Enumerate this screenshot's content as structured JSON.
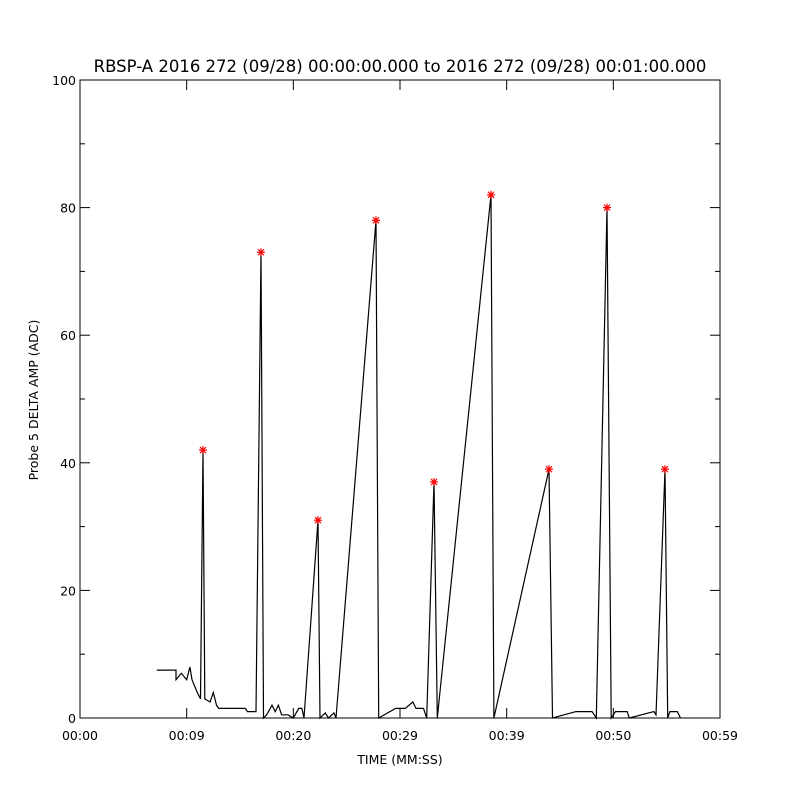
{
  "chart_data": {
    "type": "line",
    "title": "RBSP-A 2016 272 (09/28) 00:00:00.000 to 2016 272 (09/28) 00:01:00.000",
    "xlabel": "TIME (MM:SS)",
    "ylabel": "Probe 5 DELTA AMP (ADC)",
    "xlim": [
      0,
      60
    ],
    "ylim": [
      0,
      100
    ],
    "x_tick_values": [
      0,
      10,
      20,
      30,
      40,
      50,
      60
    ],
    "x_tick_labels": [
      "00:00",
      "00:09",
      "00:20",
      "00:29",
      "00:39",
      "00:50",
      "00:59"
    ],
    "y_tick_values": [
      0,
      20,
      40,
      60,
      80,
      100
    ],
    "y_tick_labels": [
      "0",
      "20",
      "40",
      "60",
      "80",
      "100"
    ],
    "grid": false,
    "line_color": "#000000",
    "marker_color": "#ff0000",
    "series": [
      {
        "points": [
          [
            7.2,
            7.5
          ],
          [
            9.0,
            7.5
          ],
          [
            9.0,
            6
          ],
          [
            9.5,
            7
          ],
          [
            10.0,
            6
          ],
          [
            10.3,
            8
          ],
          [
            10.5,
            6
          ],
          [
            11.0,
            4
          ],
          [
            11.3,
            3
          ],
          [
            11.53,
            42
          ],
          [
            11.7,
            3
          ],
          [
            12.2,
            2.5
          ],
          [
            12.5,
            4
          ],
          [
            12.8,
            2
          ],
          [
            13.0,
            1.5
          ],
          [
            15.5,
            1.5
          ],
          [
            15.7,
            1
          ],
          [
            16.5,
            1
          ],
          [
            16.97,
            73
          ],
          [
            17.2,
            0
          ],
          [
            17.5,
            0.5
          ],
          [
            18.0,
            2
          ],
          [
            18.3,
            1
          ],
          [
            18.6,
            2
          ],
          [
            18.9,
            0.5
          ],
          [
            19.5,
            0.5
          ],
          [
            20.0,
            0
          ],
          [
            20.5,
            1.5
          ],
          [
            20.8,
            1.5
          ],
          [
            21.0,
            0
          ],
          [
            22.31,
            31
          ],
          [
            22.5,
            0
          ],
          [
            23.0,
            0.8
          ],
          [
            23.3,
            0
          ],
          [
            23.8,
            0.8
          ],
          [
            24.0,
            0
          ],
          [
            27.75,
            78
          ],
          [
            28.0,
            0
          ],
          [
            29.6,
            1.5
          ],
          [
            30.5,
            1.5
          ],
          [
            31.2,
            2.5
          ],
          [
            31.5,
            1.5
          ],
          [
            32.2,
            1.5
          ],
          [
            32.5,
            0
          ],
          [
            33.19,
            37
          ],
          [
            33.5,
            0
          ],
          [
            38.53,
            82
          ],
          [
            38.8,
            0
          ],
          [
            43.97,
            39
          ],
          [
            44.3,
            0
          ],
          [
            46.5,
            1
          ],
          [
            48.0,
            1
          ],
          [
            48.4,
            0
          ],
          [
            49.41,
            80
          ],
          [
            49.8,
            0
          ],
          [
            50.2,
            1
          ],
          [
            51.3,
            1
          ],
          [
            51.5,
            0
          ],
          [
            53.8,
            1
          ],
          [
            54.0,
            0.5
          ],
          [
            54.84,
            39
          ],
          [
            55.1,
            0
          ],
          [
            55.3,
            1
          ],
          [
            56.0,
            1
          ],
          [
            56.3,
            0
          ]
        ]
      }
    ],
    "peaks": [
      {
        "x": 11.53,
        "y": 42
      },
      {
        "x": 16.97,
        "y": 73
      },
      {
        "x": 22.31,
        "y": 31
      },
      {
        "x": 27.75,
        "y": 78
      },
      {
        "x": 33.19,
        "y": 37
      },
      {
        "x": 38.53,
        "y": 82
      },
      {
        "x": 43.97,
        "y": 39
      },
      {
        "x": 49.41,
        "y": 80
      },
      {
        "x": 54.84,
        "y": 39
      }
    ]
  }
}
